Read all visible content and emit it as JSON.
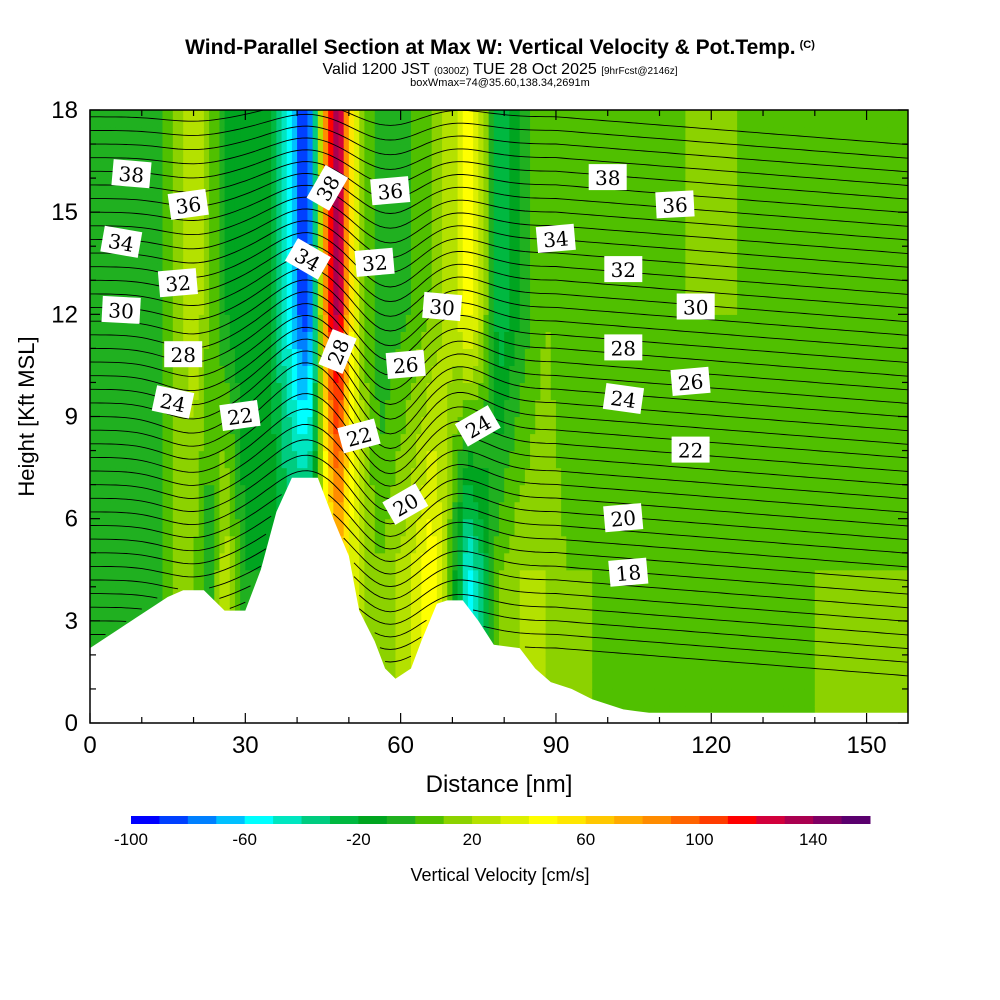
{
  "titles": {
    "main": "Wind-Parallel Section at Max W: Vertical Velocity & Pot.Temp.",
    "copyright": "(C)",
    "valid_prefix": "Valid 1200 JST",
    "valid_utc": "(0300Z)",
    "valid_date": "TUE 28 Oct 2025",
    "forecast": "[9hrFcst@2146z]",
    "boxinfo": "boxWmax=74@35.60,138.34,2691m"
  },
  "colors": {
    "frame": "#000000",
    "terrain": "#ffffff",
    "background": "#ffffff"
  },
  "chart_data": {
    "type": "contour",
    "title": "Wind-Parallel Section at Max W: Vertical Velocity & Pot.Temp.",
    "xlabel": "Distance [nm]",
    "ylabel": "Height [Kft MSL]",
    "xlim": [
      0,
      158
    ],
    "ylim": [
      0,
      18
    ],
    "xticks": [
      0,
      30,
      60,
      90,
      120,
      150
    ],
    "yticks": [
      0,
      3,
      6,
      9,
      12,
      15,
      18
    ],
    "terrain_kft": [
      [
        0,
        2.2
      ],
      [
        3,
        2.5
      ],
      [
        6,
        2.8
      ],
      [
        9,
        3.1
      ],
      [
        12,
        3.4
      ],
      [
        15,
        3.7
      ],
      [
        18,
        3.9
      ],
      [
        22,
        3.9
      ],
      [
        26,
        3.3
      ],
      [
        30,
        3.3
      ],
      [
        33,
        4.5
      ],
      [
        36,
        6.2
      ],
      [
        39,
        7.2
      ],
      [
        44,
        7.2
      ],
      [
        47,
        6.0
      ],
      [
        50,
        4.9
      ],
      [
        52,
        3.3
      ],
      [
        55,
        2.4
      ],
      [
        57,
        1.6
      ],
      [
        59,
        1.3
      ],
      [
        62,
        1.6
      ],
      [
        64,
        2.4
      ],
      [
        67,
        3.5
      ],
      [
        69,
        3.6
      ],
      [
        72,
        3.6
      ],
      [
        75,
        3.0
      ],
      [
        78,
        2.3
      ],
      [
        83,
        2.2
      ],
      [
        86,
        1.6
      ],
      [
        89,
        1.2
      ],
      [
        93,
        1.0
      ],
      [
        97,
        0.7
      ],
      [
        103,
        0.4
      ],
      [
        108,
        0.3
      ],
      [
        158,
        0.3
      ]
    ],
    "w_field_cm_s": {
      "x_nm": [
        0,
        6,
        12,
        16,
        20,
        23,
        26,
        30,
        34,
        38,
        41,
        43,
        46,
        48,
        50,
        53,
        56,
        62,
        66,
        68,
        71,
        73,
        76,
        79,
        83,
        88,
        92,
        97,
        105,
        115,
        125,
        140,
        158
      ],
      "upper_levels": [
        -10,
        0,
        -10,
        10,
        30,
        10,
        -10,
        -20,
        -10,
        -50,
        -90,
        -70,
        110,
        140,
        60,
        10,
        -10,
        0,
        10,
        20,
        30,
        50,
        20,
        -30,
        -10,
        10,
        0,
        10,
        5,
        10,
        10,
        5,
        10
      ],
      "lower_levels": [
        0,
        -10,
        -10,
        10,
        10,
        -10,
        30,
        -10,
        -10,
        -20,
        -10,
        -10,
        30,
        70,
        40,
        20,
        10,
        30,
        50,
        30,
        -20,
        -60,
        -30,
        10,
        20,
        20,
        10,
        10,
        5,
        0,
        0,
        10,
        10
      ]
    },
    "colorbar": {
      "label": "Vertical Velocity [cm/s]",
      "ticks": [
        -100,
        -60,
        -20,
        20,
        60,
        100,
        140
      ],
      "min": -100,
      "max": 150,
      "step": 10,
      "colors": [
        "#0000ff",
        "#0040ff",
        "#0080ff",
        "#00c0ff",
        "#00ffff",
        "#00e6c0",
        "#00cc80",
        "#00b840",
        "#00a520",
        "#20b020",
        "#50c000",
        "#8cd200",
        "#b4e100",
        "#dcf000",
        "#ffff00",
        "#ffe600",
        "#ffc800",
        "#ffaa00",
        "#ff8c00",
        "#ff6400",
        "#ff3c00",
        "#ff0000",
        "#d2003c",
        "#aa0050",
        "#800064",
        "#5a006e"
      ]
    },
    "theta_contours": {
      "levels_C": [
        18,
        20,
        22,
        24,
        26,
        28,
        30,
        32,
        34,
        36,
        38
      ],
      "labels": [
        {
          "text": "38",
          "x": 8,
          "y": 16.1,
          "rot": 5
        },
        {
          "text": "36",
          "x": 19,
          "y": 15.2,
          "rot": -8
        },
        {
          "text": "34",
          "x": 6,
          "y": 14.1,
          "rot": 10
        },
        {
          "text": "32",
          "x": 17,
          "y": 12.9,
          "rot": -5
        },
        {
          "text": "30",
          "x": 6,
          "y": 12.1,
          "rot": 3
        },
        {
          "text": "28",
          "x": 18,
          "y": 10.8,
          "rot": 0
        },
        {
          "text": "24",
          "x": 16,
          "y": 9.4,
          "rot": 12
        },
        {
          "text": "22",
          "x": 29,
          "y": 9.0,
          "rot": -8
        },
        {
          "text": "38",
          "x": 46,
          "y": 15.7,
          "rot": -60
        },
        {
          "text": "34",
          "x": 42,
          "y": 13.6,
          "rot": 30
        },
        {
          "text": "28",
          "x": 48,
          "y": 10.9,
          "rot": -68
        },
        {
          "text": "36",
          "x": 58,
          "y": 15.6,
          "rot": -5
        },
        {
          "text": "32",
          "x": 55,
          "y": 13.5,
          "rot": -5
        },
        {
          "text": "30",
          "x": 68,
          "y": 12.2,
          "rot": 5
        },
        {
          "text": "26",
          "x": 61,
          "y": 10.5,
          "rot": -5
        },
        {
          "text": "22",
          "x": 52,
          "y": 8.4,
          "rot": -15
        },
        {
          "text": "20",
          "x": 61,
          "y": 6.4,
          "rot": -30
        },
        {
          "text": "24",
          "x": 75,
          "y": 8.7,
          "rot": -30
        },
        {
          "text": "38",
          "x": 100,
          "y": 16.0,
          "rot": 0
        },
        {
          "text": "36",
          "x": 113,
          "y": 15.2,
          "rot": -3
        },
        {
          "text": "34",
          "x": 90,
          "y": 14.2,
          "rot": -5
        },
        {
          "text": "32",
          "x": 103,
          "y": 13.3,
          "rot": 0
        },
        {
          "text": "30",
          "x": 117,
          "y": 12.2,
          "rot": 0
        },
        {
          "text": "28",
          "x": 103,
          "y": 11.0,
          "rot": 0
        },
        {
          "text": "26",
          "x": 116,
          "y": 10.0,
          "rot": -5
        },
        {
          "text": "24",
          "x": 103,
          "y": 9.5,
          "rot": 8
        },
        {
          "text": "22",
          "x": 116,
          "y": 8.0,
          "rot": 0
        },
        {
          "text": "20",
          "x": 103,
          "y": 6.0,
          "rot": -5
        },
        {
          "text": "18",
          "x": 104,
          "y": 4.4,
          "rot": -5
        }
      ]
    }
  }
}
